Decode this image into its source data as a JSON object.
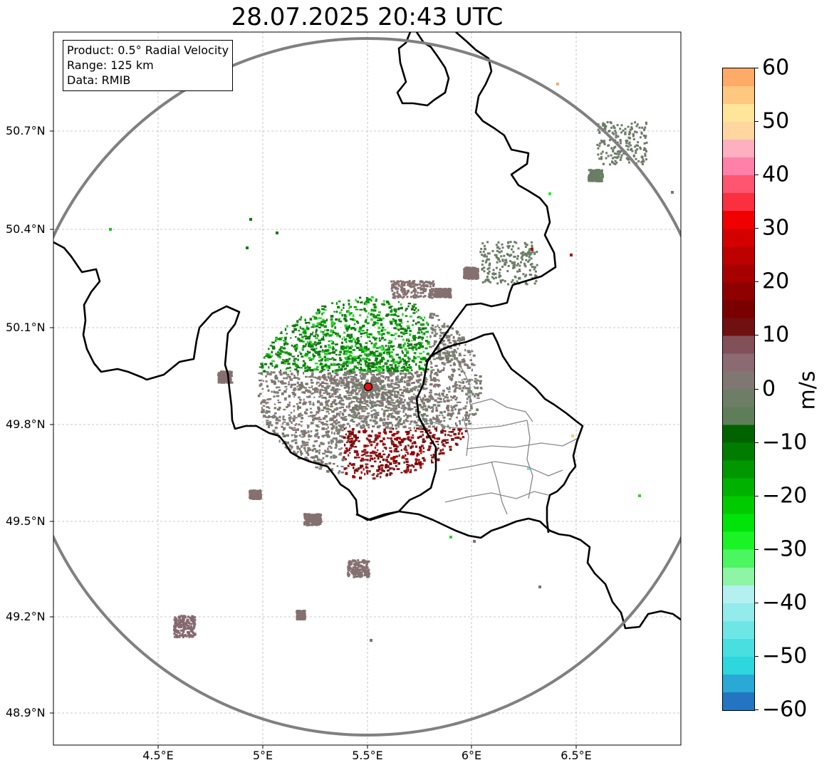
{
  "title": "28.07.2025 20:43 UTC",
  "info": {
    "product": "Product: 0.5° Radial Velocity",
    "range": "Range: 125 km",
    "data": "Data: RMIB"
  },
  "axes": {
    "lat_labels": [
      "50.7°N",
      "50.4°N",
      "50.1°N",
      "49.8°N",
      "49.5°N",
      "49.2°N",
      "48.9°N"
    ],
    "lon_labels": [
      "4.5°E",
      "5°E",
      "5.5°E",
      "6°E",
      "6.5°E"
    ]
  },
  "colorbar": {
    "unit": "m/s",
    "ticks": [
      "60",
      "50",
      "40",
      "30",
      "20",
      "10",
      "0",
      "−10",
      "−20",
      "−30",
      "−40",
      "−50",
      "−60"
    ],
    "min": -60,
    "max": 60,
    "colors": [
      "#2375c1",
      "#2aa8d6",
      "#2ed6de",
      "#49dfe0",
      "#6fe6e6",
      "#93ebeb",
      "#b4f0ef",
      "#8ef4a6",
      "#4cf661",
      "#1bf327",
      "#00e40a",
      "#00cb00",
      "#00b100",
      "#009700",
      "#007d00",
      "#006300",
      "#5e7e5a",
      "#6e7d66",
      "#807772",
      "#8c6a72",
      "#825058",
      "#701010",
      "#7a0000",
      "#8f0000",
      "#a60000",
      "#bd0000",
      "#d40000",
      "#f00000",
      "#fa3040",
      "#ff5570",
      "#ff80a8",
      "#ffb0c0",
      "#ffd6a0",
      "#ffe59a",
      "#ffc880",
      "#ffaa66"
    ],
    "accent": "#000000"
  },
  "radar": {
    "site_color": "#e01010",
    "range_ring_color": "#808080"
  }
}
